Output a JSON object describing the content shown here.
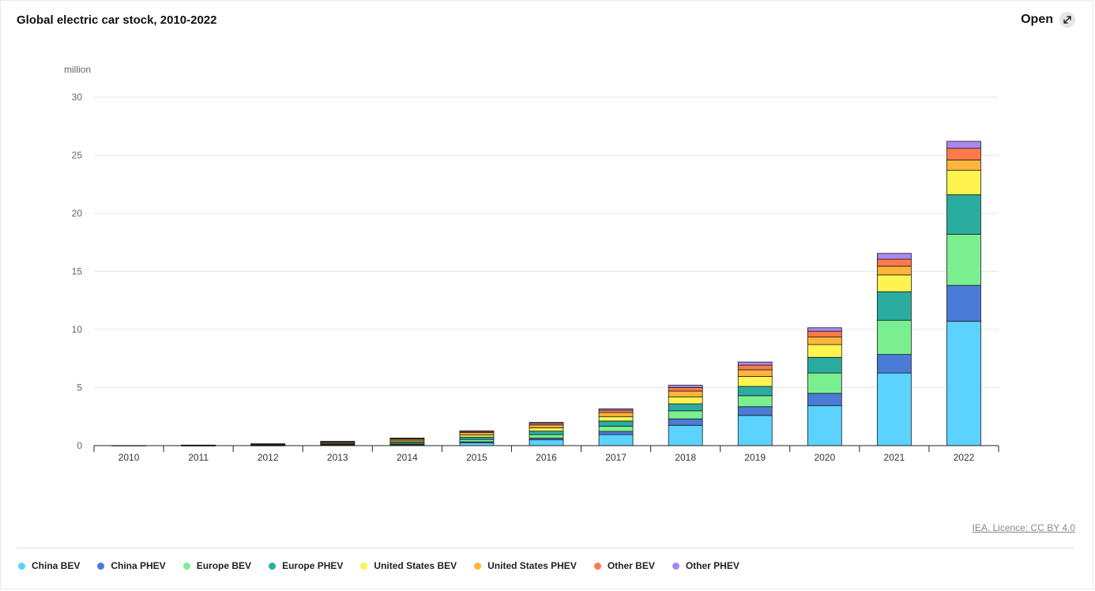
{
  "header": {
    "title": "Global electric car stock, 2010-2022",
    "open_label": "Open"
  },
  "footer": {
    "credit": "IEA. Licence: CC BY 4.0"
  },
  "chart_data": {
    "type": "bar",
    "stacked": true,
    "title": "Global electric car stock, 2010-2022",
    "ylabel": "million",
    "xlabel": "",
    "ylim": [
      0,
      30
    ],
    "yticks": [
      0,
      5,
      10,
      15,
      20,
      25,
      30
    ],
    "grid": true,
    "legend_position": "bottom",
    "categories": [
      "2010",
      "2011",
      "2012",
      "2013",
      "2014",
      "2015",
      "2016",
      "2017",
      "2018",
      "2019",
      "2020",
      "2021",
      "2022"
    ],
    "series": [
      {
        "name": "China BEV",
        "color": "#5bd2ff",
        "values": [
          0.01,
          0.01,
          0.02,
          0.04,
          0.08,
          0.25,
          0.5,
          0.95,
          1.75,
          2.6,
          3.45,
          6.25,
          10.7
        ]
      },
      {
        "name": "China PHEV",
        "color": "#4a7bd6",
        "values": [
          0.0,
          0.0,
          0.0,
          0.01,
          0.03,
          0.08,
          0.15,
          0.27,
          0.55,
          0.75,
          1.05,
          1.6,
          3.1
        ]
      },
      {
        "name": "Europe BEV",
        "color": "#7aef90",
        "values": [
          0.0,
          0.01,
          0.02,
          0.05,
          0.1,
          0.2,
          0.3,
          0.45,
          0.7,
          0.95,
          1.75,
          2.95,
          4.4
        ]
      },
      {
        "name": "Europe PHEV",
        "color": "#2aada0",
        "values": [
          0.0,
          0.0,
          0.02,
          0.05,
          0.09,
          0.2,
          0.3,
          0.45,
          0.6,
          0.8,
          1.35,
          2.45,
          3.4
        ]
      },
      {
        "name": "United States BEV",
        "color": "#fff44f",
        "values": [
          0.0,
          0.01,
          0.03,
          0.07,
          0.12,
          0.2,
          0.28,
          0.38,
          0.6,
          0.85,
          1.1,
          1.45,
          2.1
        ]
      },
      {
        "name": "United States PHEV",
        "color": "#ffb43a",
        "values": [
          0.0,
          0.01,
          0.04,
          0.08,
          0.13,
          0.19,
          0.25,
          0.35,
          0.5,
          0.58,
          0.65,
          0.75,
          0.9
        ]
      },
      {
        "name": "Other BEV",
        "color": "#ff7a4a",
        "values": [
          0.0,
          0.01,
          0.02,
          0.05,
          0.07,
          0.1,
          0.14,
          0.2,
          0.3,
          0.4,
          0.5,
          0.6,
          1.0
        ]
      },
      {
        "name": "Other PHEV",
        "color": "#a888ee",
        "values": [
          0.0,
          0.0,
          0.01,
          0.02,
          0.03,
          0.05,
          0.08,
          0.12,
          0.2,
          0.27,
          0.3,
          0.5,
          0.6
        ]
      }
    ]
  }
}
